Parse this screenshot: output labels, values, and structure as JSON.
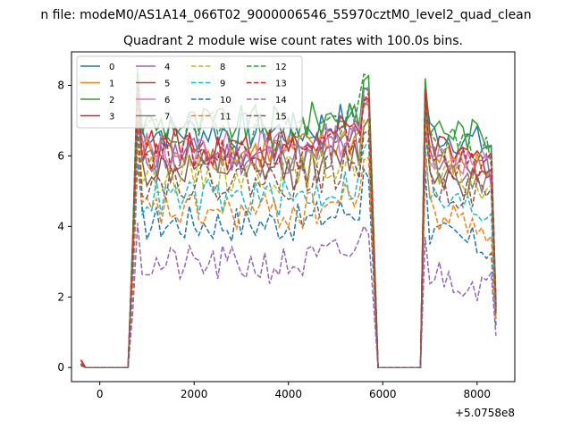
{
  "figure": {
    "suptitle": "n file: modeM0/AS1A14_066T02_9000006546_55970cztM0_level2_quad_clean"
  },
  "chart_data": {
    "type": "line",
    "title": "Quadrant 2 module wise count rates with 100.0s bins.",
    "xlabel": "",
    "ylabel": "",
    "x_offset_label": "+5.0758e8",
    "xlim": [
      -600,
      8800
    ],
    "ylim": [
      -0.4,
      8.95
    ],
    "xticks": [
      0,
      2000,
      4000,
      6000,
      8000
    ],
    "yticks": [
      0,
      2,
      4,
      6,
      8
    ],
    "xtick_labels": [
      "0",
      "2000",
      "4000",
      "6000",
      "8000"
    ],
    "ytick_labels": [
      "0",
      "2",
      "4",
      "6",
      "8"
    ],
    "legend_position": "top-left",
    "segments": [
      {
        "x_start": 600,
        "x_end": 5700,
        "step": 100
      },
      {
        "x_start": 6900,
        "x_end": 8300,
        "step": 100
      }
    ],
    "series": [
      {
        "name": "0",
        "color": "#1f77b4",
        "dash": "solid",
        "pre": [
          0.12,
          0.0
        ],
        "seg1_level": 6.7,
        "seg1_peak": 8.1,
        "seg2_level": 6.7,
        "seg2_peak": 7.8,
        "end": 1.8
      },
      {
        "name": "1",
        "color": "#ff7f0e",
        "dash": "solid",
        "pre": [
          0.18,
          0.0
        ],
        "seg1_level": 6.1,
        "seg1_peak": 7.8,
        "seg2_level": 6.0,
        "seg2_peak": 7.4,
        "end": 1.7
      },
      {
        "name": "2",
        "color": "#2ca02c",
        "dash": "solid",
        "pre": [
          0.1,
          0.0
        ],
        "seg1_level": 6.9,
        "seg1_peak": 8.3,
        "seg2_level": 6.9,
        "seg2_peak": 8.2,
        "end": 1.9
      },
      {
        "name": "3",
        "color": "#d62728",
        "dash": "solid",
        "pre": [
          0.22,
          0.0
        ],
        "seg1_level": 6.3,
        "seg1_peak": 8.0,
        "seg2_level": 6.2,
        "seg2_peak": 7.9,
        "end": 1.8
      },
      {
        "name": "4",
        "color": "#9467bd",
        "dash": "solid",
        "pre": [
          0.1,
          0.0
        ],
        "seg1_level": 6.0,
        "seg1_peak": 7.7,
        "seg2_level": 6.0,
        "seg2_peak": 7.5,
        "end": 1.7
      },
      {
        "name": "5",
        "color": "#8c564b",
        "dash": "solid",
        "pre": [
          0.08,
          0.0
        ],
        "seg1_level": 5.6,
        "seg1_peak": 7.2,
        "seg2_level": 5.6,
        "seg2_peak": 7.0,
        "end": 1.6
      },
      {
        "name": "6",
        "color": "#e377c2",
        "dash": "solid",
        "pre": [
          0.1,
          0.0
        ],
        "seg1_level": 6.2,
        "seg1_peak": 7.9,
        "seg2_level": 6.1,
        "seg2_peak": 7.6,
        "end": 1.7
      },
      {
        "name": "7",
        "color": "#7f7f7f",
        "dash": "solid",
        "pre": [
          0.1,
          0.0
        ],
        "seg1_level": 5.9,
        "seg1_peak": 8.4,
        "seg2_level": 5.8,
        "seg2_peak": 7.3,
        "end": 1.6
      },
      {
        "name": "8",
        "color": "#bcbd22",
        "dash": "dashed",
        "pre": [
          0.08,
          0.0
        ],
        "seg1_level": 5.5,
        "seg1_peak": 7.2,
        "seg2_level": 5.5,
        "seg2_peak": 6.9,
        "end": 1.5
      },
      {
        "name": "9",
        "color": "#17becf",
        "dash": "dashed",
        "pre": [
          0.08,
          0.0
        ],
        "seg1_level": 4.8,
        "seg1_peak": 6.6,
        "seg2_level": 4.8,
        "seg2_peak": 6.3,
        "end": 1.4
      },
      {
        "name": "10",
        "color": "#1f77b4",
        "dash": "dashed",
        "pre": [
          0.06,
          0.0
        ],
        "seg1_level": 4.1,
        "seg1_peak": 5.8,
        "seg2_level": 3.8,
        "seg2_peak": 5.6,
        "end": 1.2
      },
      {
        "name": "11",
        "color": "#ff7f0e",
        "dash": "dashed",
        "pre": [
          0.08,
          0.0
        ],
        "seg1_level": 4.4,
        "seg1_peak": 6.3,
        "seg2_level": 4.4,
        "seg2_peak": 6.0,
        "end": 1.3
      },
      {
        "name": "12",
        "color": "#2ca02c",
        "dash": "dashed",
        "pre": [
          0.08,
          0.0
        ],
        "seg1_level": 6.7,
        "seg1_peak": 8.5,
        "seg2_level": 6.5,
        "seg2_peak": 7.6,
        "end": 1.8
      },
      {
        "name": "13",
        "color": "#d62728",
        "dash": "dashed",
        "pre": [
          0.1,
          0.0
        ],
        "seg1_level": 6.1,
        "seg1_peak": 7.9,
        "seg2_level": 6.0,
        "seg2_peak": 7.7,
        "end": 1.7
      },
      {
        "name": "14",
        "color": "#9467bd",
        "dash": "dashed",
        "pre": [
          0.05,
          0.0
        ],
        "seg1_level": 2.9,
        "seg1_peak": 4.1,
        "seg2_level": 2.7,
        "seg2_peak": 3.7,
        "end": 0.9
      },
      {
        "name": "15",
        "color": "#8c564b",
        "dash": "dashed",
        "pre": [
          0.06,
          0.0
        ],
        "seg1_level": 5.3,
        "seg1_peak": 7.0,
        "seg2_level": 5.2,
        "seg2_peak": 6.7,
        "end": 1.5
      }
    ]
  }
}
